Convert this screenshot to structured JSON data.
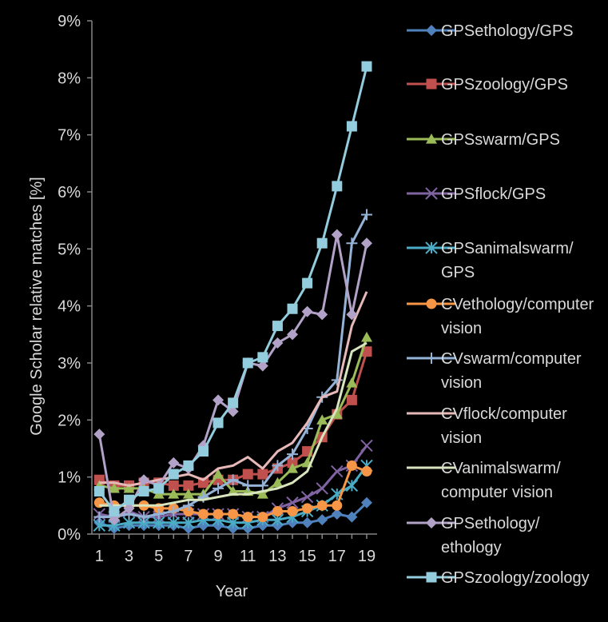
{
  "chart_data": {
    "type": "line",
    "xlabel": "Year",
    "ylabel": "Google Scholar relative matches [%]",
    "x": [
      1,
      2,
      3,
      4,
      5,
      6,
      7,
      8,
      9,
      10,
      11,
      12,
      13,
      14,
      15,
      16,
      17,
      18,
      19
    ],
    "x_ticks": [
      "1",
      "3",
      "5",
      "7",
      "9",
      "11",
      "13",
      "15",
      "17",
      "19"
    ],
    "y_ticks": [
      "0%",
      "1%",
      "2%",
      "3%",
      "4%",
      "5%",
      "6%",
      "7%",
      "8%",
      "9%"
    ],
    "ylim": [
      0,
      9
    ],
    "xlim": [
      0.5,
      19.7
    ],
    "grid": false,
    "legend_position": "right",
    "series": [
      {
        "name": "GPSethology/GPS",
        "color": "#4f81bd",
        "marker": "diamond",
        "values": [
          0.2,
          0.1,
          0.15,
          0.15,
          0.15,
          0.15,
          0.1,
          0.15,
          0.15,
          0.1,
          0.1,
          0.15,
          0.15,
          0.2,
          0.2,
          0.25,
          0.35,
          0.3,
          0.55
        ]
      },
      {
        "name": "GPSzoology/GPS",
        "color": "#c0504d",
        "marker": "square",
        "values": [
          0.95,
          0.85,
          0.85,
          0.9,
          0.9,
          0.85,
          0.85,
          0.9,
          0.95,
          0.95,
          1.05,
          1.05,
          1.15,
          1.25,
          1.45,
          1.7,
          2.1,
          2.35,
          3.2
        ]
      },
      {
        "name": "GPSswarm/GPS",
        "color": "#9bbb59",
        "marker": "triangle",
        "values": [
          0.85,
          0.8,
          0.8,
          0.8,
          0.7,
          0.7,
          0.7,
          0.7,
          1.05,
          0.75,
          0.75,
          0.7,
          0.9,
          1.15,
          1.25,
          2.0,
          2.1,
          2.65,
          3.45
        ]
      },
      {
        "name": "GPSflock/GPS",
        "color": "#8064a2",
        "marker": "x",
        "values": [
          0.35,
          0.3,
          0.4,
          0.3,
          0.3,
          0.35,
          0.35,
          0.35,
          0.35,
          0.35,
          0.3,
          0.3,
          0.45,
          0.55,
          0.65,
          0.8,
          1.1,
          1.2,
          1.55
        ]
      },
      {
        "name": "GPSanimalswarm/GPS",
        "color": "#4bacc6",
        "marker": "star",
        "values": [
          0.15,
          0.15,
          0.2,
          0.2,
          0.2,
          0.2,
          0.2,
          0.25,
          0.25,
          0.2,
          0.2,
          0.25,
          0.25,
          0.3,
          0.4,
          0.5,
          0.7,
          0.85,
          1.2
        ]
      },
      {
        "name": "CVethology/computer vision",
        "color": "#f79646",
        "marker": "circle",
        "values": [
          0.55,
          0.5,
          0.5,
          0.5,
          0.45,
          0.45,
          0.4,
          0.35,
          0.35,
          0.35,
          0.3,
          0.3,
          0.4,
          0.4,
          0.45,
          0.5,
          0.5,
          1.2,
          1.1
        ]
      },
      {
        "name": "CVswarm/computer vision",
        "color": "#95b3d7",
        "marker": "plus",
        "values": [
          0.3,
          0.3,
          0.35,
          0.3,
          0.35,
          0.4,
          0.5,
          0.65,
          0.8,
          0.95,
          0.85,
          0.85,
          1.2,
          1.4,
          1.85,
          2.4,
          2.7,
          5.1,
          5.6
        ]
      },
      {
        "name": "CVflock/computer vision",
        "color": "#e6b9b8",
        "marker": "none",
        "values": [
          0.9,
          0.9,
          0.85,
          0.9,
          0.95,
          1.0,
          1.05,
          0.95,
          1.15,
          1.2,
          1.35,
          1.15,
          1.45,
          1.6,
          1.95,
          2.4,
          2.5,
          3.65,
          4.25
        ]
      },
      {
        "name": "CVanimalswarm/computer vision",
        "color": "#d7e4bd",
        "marker": "none",
        "values": [
          0.5,
          0.5,
          0.5,
          0.5,
          0.5,
          0.55,
          0.6,
          0.6,
          0.65,
          0.7,
          0.7,
          0.75,
          0.8,
          0.9,
          1.1,
          1.7,
          2.2,
          3.2,
          3.35
        ]
      },
      {
        "name": "GPSethology/ethology",
        "color": "#b3a2c7",
        "marker": "diamond",
        "values": [
          1.75,
          0.25,
          0.45,
          0.95,
          0.85,
          1.25,
          1.15,
          1.55,
          2.35,
          2.15,
          3.0,
          2.95,
          3.35,
          3.5,
          3.9,
          3.85,
          5.25,
          3.85,
          5.1
        ]
      },
      {
        "name": "GPSzoology/zoology",
        "color": "#93cddd",
        "marker": "square",
        "values": [
          0.75,
          0.4,
          0.6,
          0.75,
          0.8,
          1.05,
          1.2,
          1.45,
          1.95,
          2.3,
          3.0,
          3.1,
          3.65,
          3.95,
          4.4,
          5.1,
          6.1,
          7.15,
          8.2
        ]
      }
    ]
  },
  "legend": [
    {
      "lines": [
        "GPSethology/GPS"
      ]
    },
    {
      "lines": [
        "GPSzoology/GPS"
      ]
    },
    {
      "lines": [
        "GPSswarm/GPS"
      ]
    },
    {
      "lines": [
        "GPSflock/GPS"
      ]
    },
    {
      "lines": [
        "GPSanimalswarm/",
        "GPS"
      ]
    },
    {
      "lines": [
        "CVethology/computer",
        "vision"
      ]
    },
    {
      "lines": [
        "CVswarm/computer",
        "vision"
      ]
    },
    {
      "lines": [
        "CVflock/computer",
        "vision"
      ]
    },
    {
      "lines": [
        "CVanimalswarm/",
        "computer vision"
      ]
    },
    {
      "lines": [
        "GPSethology/",
        "ethology"
      ]
    },
    {
      "lines": [
        "GPSzoology/zoology"
      ]
    }
  ]
}
